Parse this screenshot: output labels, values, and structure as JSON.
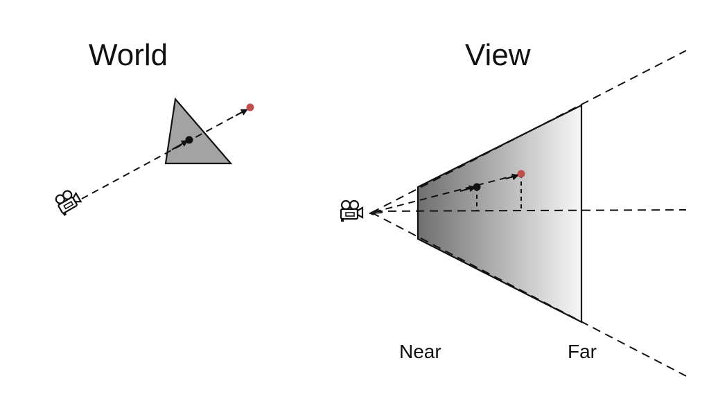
{
  "world": {
    "title": "World"
  },
  "view": {
    "title": "View",
    "near_label": "Near",
    "far_label": "Far"
  },
  "colors": {
    "triangle_fill": "#a3a3a3",
    "point_near": "#111111",
    "point_far": "#c0504d",
    "frustum_dark": "#6f6f6f",
    "frustum_light": "#f7f7f7",
    "stroke": "#111111"
  },
  "icons": [
    "camera-icon"
  ]
}
